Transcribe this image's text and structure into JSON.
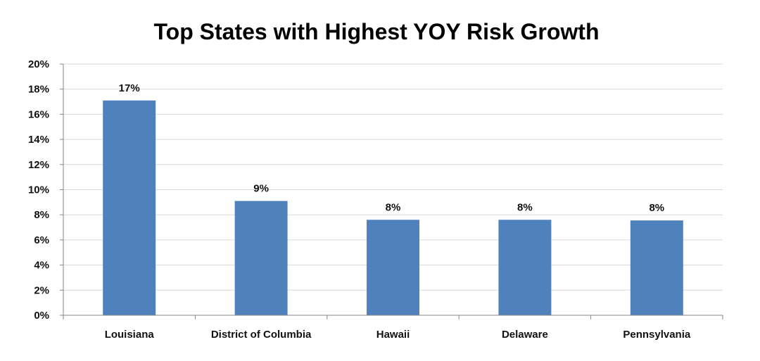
{
  "chart_data": {
    "type": "bar",
    "title": "Top States with Highest YOY Risk Growth",
    "xlabel": "",
    "ylabel": "",
    "categories": [
      "Louisiana",
      "District of Columbia",
      "Hawaii",
      "Delaware",
      "Pennsylvania"
    ],
    "values": [
      0.171,
      0.091,
      0.076,
      0.076,
      0.0755
    ],
    "data_labels": [
      "17%",
      "9%",
      "8%",
      "8%",
      "8%"
    ],
    "ylim": [
      0,
      0.2
    ],
    "yticks": [
      0,
      0.02,
      0.04,
      0.06,
      0.08,
      0.1,
      0.12,
      0.14,
      0.16,
      0.18,
      0.2
    ],
    "ytick_labels": [
      "0%",
      "2%",
      "4%",
      "6%",
      "8%",
      "10%",
      "12%",
      "14%",
      "16%",
      "18%",
      "20%"
    ],
    "grid": true,
    "legend": "none",
    "bar_color": "#4F81BD",
    "grid_color": "#D9D9D9",
    "axis_color": "#868686"
  }
}
